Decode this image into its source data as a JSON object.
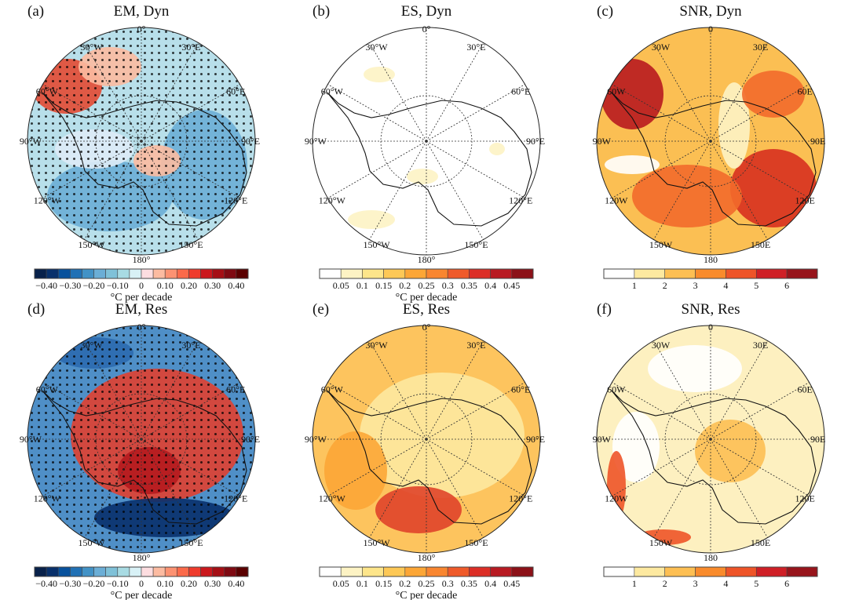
{
  "figure": {
    "panels": [
      {
        "label": "(a)",
        "title": "EM, Dyn",
        "bg": "#b8dfea",
        "stipple": true,
        "lon_labels": [
          "0°",
          "30°E",
          "60°E",
          "90°E",
          "120°E",
          "150°E",
          "180°",
          "150°W",
          "120°W",
          "90°W",
          "60°W",
          "30°W"
        ],
        "blobs": [
          {
            "c": "#e34a33",
            "cx": -95,
            "cy": -70,
            "rx": 45,
            "ry": 35
          },
          {
            "c": "#fcbba1",
            "cx": -40,
            "cy": -95,
            "rx": 40,
            "ry": 25
          },
          {
            "c": "#6baed6",
            "cx": -40,
            "cy": 70,
            "rx": 80,
            "ry": 45
          },
          {
            "c": "#6baed6",
            "cx": 80,
            "cy": 30,
            "rx": 55,
            "ry": 70
          },
          {
            "c": "#fcbba1",
            "cx": 20,
            "cy": 25,
            "rx": 30,
            "ry": 20
          },
          {
            "c": "#deebf7",
            "cx": -60,
            "cy": 10,
            "rx": 50,
            "ry": 25
          }
        ],
        "colorbar": {
          "colors": [
            "#08214a",
            "#08306b",
            "#08519c",
            "#2171b5",
            "#4292c6",
            "#6baed6",
            "#7fc1d8",
            "#a8dbe3",
            "#d8f1f6",
            "#fddde0",
            "#fcbba1",
            "#fc9272",
            "#fb6a4a",
            "#ef3b2c",
            "#cb181d",
            "#a50f15",
            "#7f0a12",
            "#5a0000"
          ],
          "ticks": [
            "−0.40",
            "−0.30",
            "−0.20",
            "−0.10",
            "0",
            "0.10",
            "0.20",
            "0.30",
            "0.40"
          ],
          "tick_every": 2,
          "tick_start": 1,
          "unit": "°C per decade"
        }
      },
      {
        "label": "(b)",
        "title": "ES, Dyn",
        "bg": "#ffffff",
        "stipple": false,
        "lon_labels": [
          "0°",
          "30°E",
          "60°E",
          "90°E",
          "120°E",
          "150°E",
          "180°",
          "150°W",
          "120°W",
          "90°W",
          "60°W",
          "30°W"
        ],
        "blobs": [
          {
            "c": "#fdf3c4",
            "cx": -60,
            "cy": -85,
            "rx": 20,
            "ry": 10
          },
          {
            "c": "#fdf3c4",
            "cx": -70,
            "cy": 100,
            "rx": 30,
            "ry": 12
          },
          {
            "c": "#fdf3c4",
            "cx": -5,
            "cy": 45,
            "rx": 20,
            "ry": 10
          },
          {
            "c": "#fdf3c4",
            "cx": 90,
            "cy": 10,
            "rx": 10,
            "ry": 8
          }
        ],
        "colorbar": {
          "colors": [
            "#ffffff",
            "#fdf3c4",
            "#fde58a",
            "#fdc856",
            "#fca636",
            "#f98630",
            "#ef5a2a",
            "#dc2e26",
            "#b81a22",
            "#8c1118"
          ],
          "ticks": [
            "0.05",
            "0.1",
            "0.15",
            "0.2",
            "0.25",
            "0.3",
            "0.35",
            "0.4",
            "0.45"
          ],
          "tick_every": 1,
          "tick_start": 1,
          "unit": "°C per decade"
        }
      },
      {
        "label": "(c)",
        "title": "SNR, Dyn",
        "bg": "#fbbf53",
        "stipple": false,
        "lon_labels": [
          "0",
          "30E",
          "60E",
          "90E",
          "120E",
          "150E",
          "180",
          "150W",
          "120W",
          "90W",
          "60W",
          "30W"
        ],
        "blobs": [
          {
            "c": "#b8191f",
            "cx": -100,
            "cy": -60,
            "rx": 40,
            "ry": 45
          },
          {
            "c": "#d7301f",
            "cx": 80,
            "cy": 60,
            "rx": 55,
            "ry": 50
          },
          {
            "c": "#f26a2b",
            "cx": -30,
            "cy": 70,
            "rx": 70,
            "ry": 40
          },
          {
            "c": "#fdf3c4",
            "cx": 30,
            "cy": -20,
            "rx": 20,
            "ry": 55
          },
          {
            "c": "#ffffff",
            "cx": -100,
            "cy": 30,
            "rx": 35,
            "ry": 12
          },
          {
            "c": "#f26a2b",
            "cx": 80,
            "cy": -60,
            "rx": 40,
            "ry": 30
          }
        ],
        "colorbar": {
          "colors": [
            "#ffffff",
            "#fde9a0",
            "#fdbf53",
            "#f98b2c",
            "#ee5428",
            "#cf1f26",
            "#97141b"
          ],
          "ticks": [
            "1",
            "2",
            "3",
            "4",
            "5",
            "6"
          ],
          "tick_every": 1,
          "tick_start": 1,
          "unit": ""
        }
      },
      {
        "label": "(d)",
        "title": "EM, Res",
        "bg": "#4f8fc7",
        "stipple": true,
        "lon_labels": [
          "0°",
          "30°E",
          "60°E",
          "90°E",
          "120°E",
          "150°E",
          "180°",
          "150°W",
          "120°W",
          "90°W",
          "60°W",
          "30°W"
        ],
        "blobs": [
          {
            "c": "#e04030",
            "cx": 20,
            "cy": -5,
            "rx": 110,
            "ry": 85
          },
          {
            "c": "#b51a1e",
            "cx": 10,
            "cy": 40,
            "rx": 40,
            "ry": 30
          },
          {
            "c": "#08306b",
            "cx": 30,
            "cy": 100,
            "rx": 90,
            "ry": 25
          },
          {
            "c": "#2b6aaf",
            "cx": -60,
            "cy": -110,
            "rx": 50,
            "ry": 20
          }
        ],
        "colorbar": {
          "colors": [
            "#08214a",
            "#08306b",
            "#08519c",
            "#2171b5",
            "#4292c6",
            "#6baed6",
            "#7fc1d8",
            "#a8dbe3",
            "#d8f1f6",
            "#fddde0",
            "#fcbba1",
            "#fc9272",
            "#fb6a4a",
            "#ef3b2c",
            "#cb181d",
            "#a50f15",
            "#7f0a12",
            "#5a0000"
          ],
          "ticks": [
            "−0.40",
            "−0.30",
            "−0.20",
            "−0.10",
            "0",
            "0.10",
            "0.20",
            "0.30",
            "0.40"
          ],
          "tick_every": 2,
          "tick_start": 1,
          "unit": "°C per decade"
        }
      },
      {
        "label": "(e)",
        "title": "ES, Res",
        "bg": "#fdc45e",
        "stipple": false,
        "lon_labels": [
          "0°",
          "30°E",
          "60°E",
          "90°E",
          "120°E",
          "150°E",
          "180°",
          "150°W",
          "120°W",
          "90°W",
          "60°W",
          "30°W"
        ],
        "blobs": [
          {
            "c": "#fde9a0",
            "cx": 20,
            "cy": -5,
            "rx": 105,
            "ry": 80
          },
          {
            "c": "#e0442a",
            "cx": -10,
            "cy": 90,
            "rx": 55,
            "ry": 30
          },
          {
            "c": "#fca636",
            "cx": -90,
            "cy": 40,
            "rx": 40,
            "ry": 50
          }
        ],
        "colorbar": {
          "colors": [
            "#ffffff",
            "#fdf3c4",
            "#fde58a",
            "#fdc856",
            "#fca636",
            "#f98630",
            "#ef5a2a",
            "#dc2e26",
            "#b81a22",
            "#8c1118"
          ],
          "ticks": [
            "0.05",
            "0.1",
            "0.15",
            "0.2",
            "0.25",
            "0.3",
            "0.35",
            "0.4",
            "0.45"
          ],
          "tick_every": 1,
          "tick_start": 1,
          "unit": "°C per decade"
        }
      },
      {
        "label": "(f)",
        "title": "SNR, Res",
        "bg": "#fdf0c0",
        "stipple": false,
        "lon_labels": [
          "0",
          "30E",
          "60E",
          "90E",
          "120E",
          "150E",
          "180",
          "150W",
          "120W",
          "90W",
          "60W",
          "30W"
        ],
        "blobs": [
          {
            "c": "#ffffff",
            "cx": -20,
            "cy": -90,
            "rx": 60,
            "ry": 30
          },
          {
            "c": "#ffffff",
            "cx": -95,
            "cy": 10,
            "rx": 30,
            "ry": 45
          },
          {
            "c": "#ee5428",
            "cx": -120,
            "cy": 60,
            "rx": 12,
            "ry": 45
          },
          {
            "c": "#ee5428",
            "cx": -60,
            "cy": 125,
            "rx": 35,
            "ry": 10
          },
          {
            "c": "#fdbf53",
            "cx": 25,
            "cy": 15,
            "rx": 45,
            "ry": 40
          }
        ],
        "colorbar": {
          "colors": [
            "#ffffff",
            "#fde9a0",
            "#fdbf53",
            "#f98b2c",
            "#ee5428",
            "#cf1f26",
            "#97141b"
          ],
          "ticks": [
            "1",
            "2",
            "3",
            "4",
            "5",
            "6"
          ],
          "tick_every": 1,
          "tick_start": 1,
          "unit": ""
        }
      }
    ]
  }
}
